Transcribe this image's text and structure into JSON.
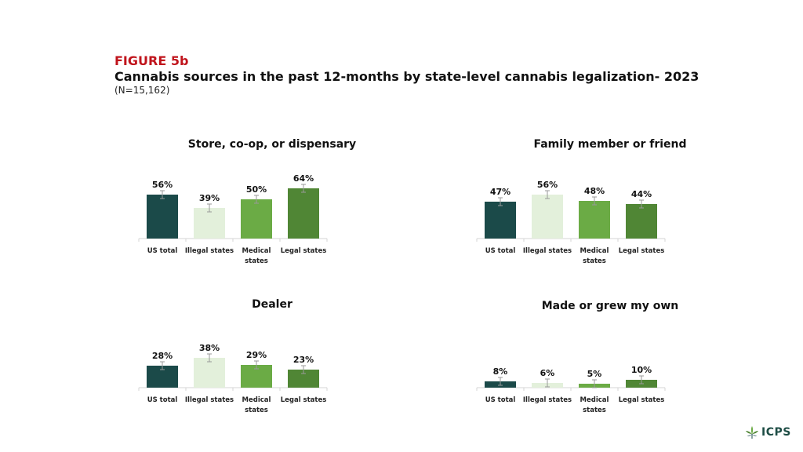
{
  "header": {
    "figure_label": "FIGURE 5b",
    "title": "Cannabis sources in the past 12-months by state-level cannabis legalization- 2023",
    "sample": "(N=15,162)"
  },
  "colors": {
    "US total": "#1b4a49",
    "Illegal states": "#e3f0db",
    "Medical states": "#6bab45",
    "Legal states": "#508635",
    "label_red": "#c0141c"
  },
  "logo": {
    "text": "ICPS",
    "icon": "cannabis-leaf-icon"
  },
  "chart_data": [
    {
      "type": "bar",
      "title": "Store, co-op, or dispensary",
      "categories": [
        "US total",
        "Illegal states",
        "Medical states",
        "Legal states"
      ],
      "values": [
        56,
        39,
        50,
        64
      ],
      "labels": [
        "56%",
        "39%",
        "50%",
        "64%"
      ],
      "ylim": [
        0,
        100
      ]
    },
    {
      "type": "bar",
      "title": "Family member or friend",
      "categories": [
        "US total",
        "Illegal states",
        "Medical states",
        "Legal states"
      ],
      "values": [
        47,
        56,
        48,
        44
      ],
      "labels": [
        "47%",
        "56%",
        "48%",
        "44%"
      ],
      "ylim": [
        0,
        100
      ]
    },
    {
      "type": "bar",
      "title": "Dealer",
      "categories": [
        "US total",
        "Illegal states",
        "Medical states",
        "Legal states"
      ],
      "values": [
        28,
        38,
        29,
        23
      ],
      "labels": [
        "28%",
        "38%",
        "29%",
        "23%"
      ],
      "ylim": [
        0,
        100
      ]
    },
    {
      "type": "bar",
      "title": "Made or grew my own",
      "categories": [
        "US total",
        "Illegal states",
        "Medical states",
        "Legal states"
      ],
      "values": [
        8,
        6,
        5,
        10
      ],
      "labels": [
        "8%",
        "6%",
        "5%",
        "10%"
      ],
      "ylim": [
        0,
        100
      ]
    }
  ]
}
